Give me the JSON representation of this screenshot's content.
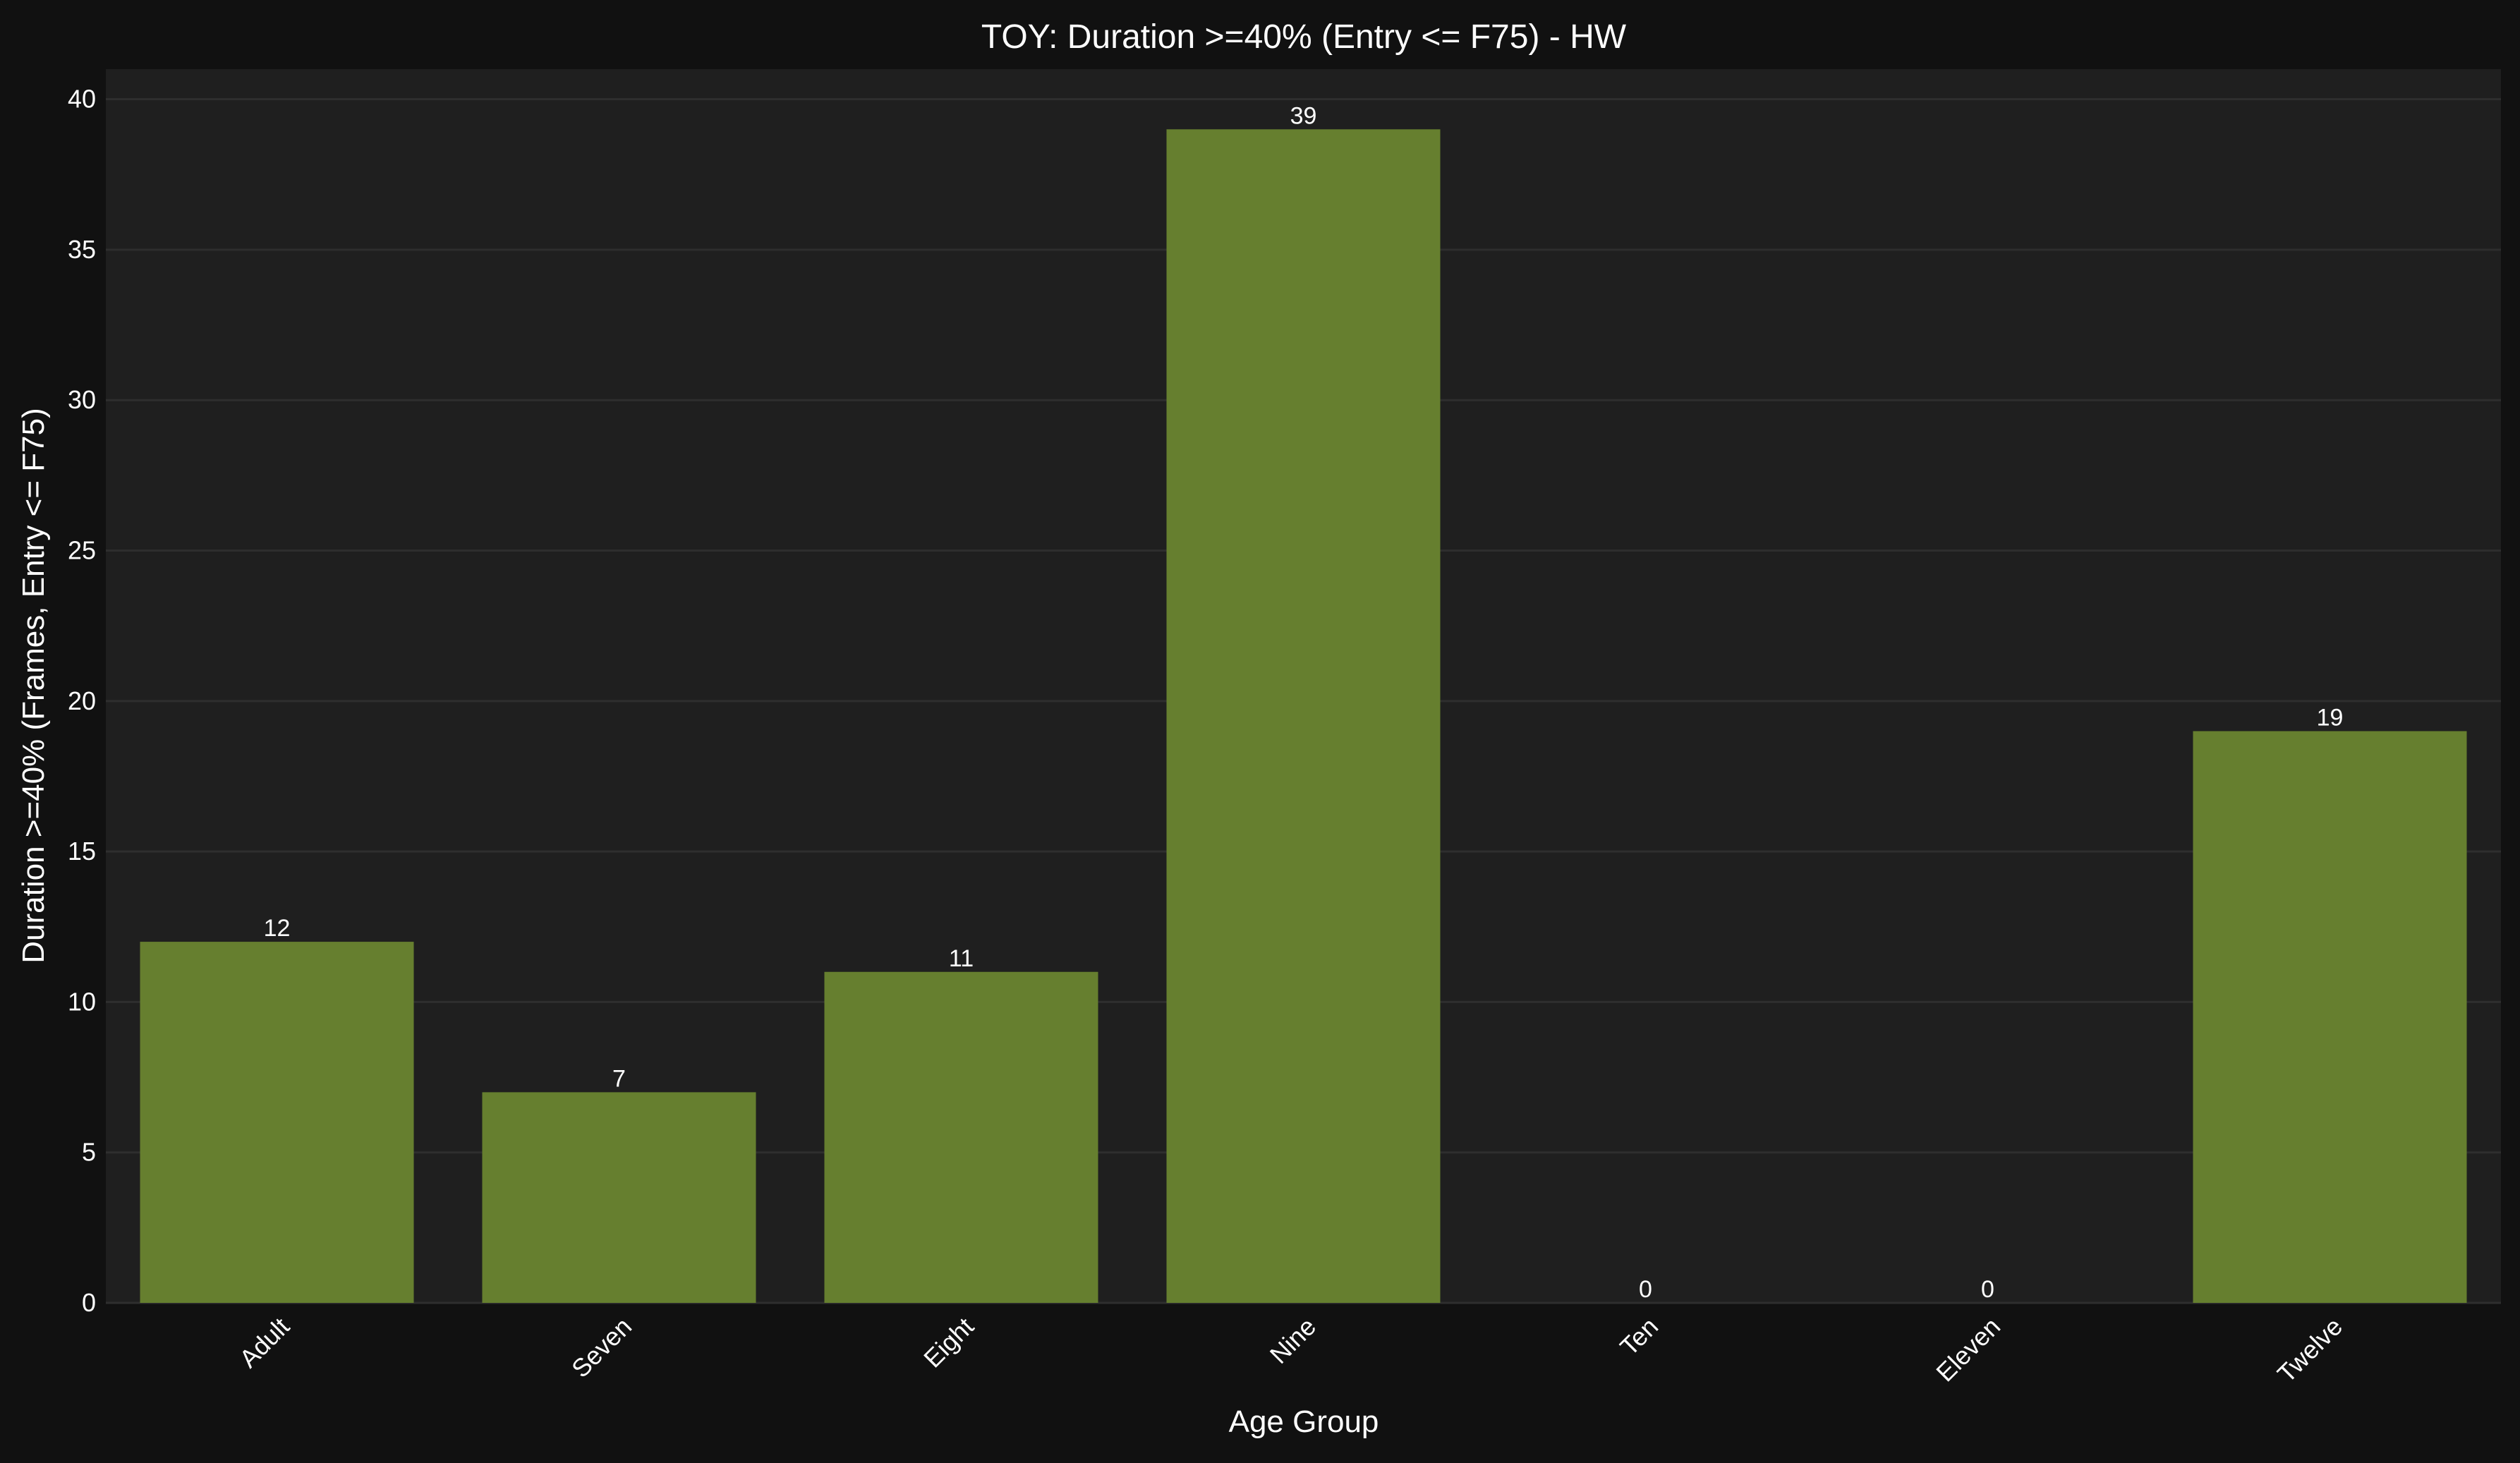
{
  "colors": {
    "page_background": "#111111",
    "plot_background": "#1f1f1f",
    "grid": "#2e2e2e",
    "bar": "#667f2f",
    "text": "#ffffff"
  },
  "chart_data": {
    "type": "bar",
    "title": "TOY: Duration >=40% (Entry <= F75) - HW",
    "xlabel": "Age Group",
    "ylabel": "Duration >=40% (Frames, Entry <= F75)",
    "categories": [
      "Adult",
      "Seven",
      "Eight",
      "Nine",
      "Ten",
      "Eleven",
      "Twelve"
    ],
    "values": [
      12,
      7,
      11,
      39,
      0,
      0,
      19
    ],
    "ylim": [
      0,
      41
    ],
    "yticks": [
      0,
      5,
      10,
      15,
      20,
      25,
      30,
      35,
      40
    ],
    "grid": true,
    "legend": "none",
    "tick_label_rotation": 45
  }
}
